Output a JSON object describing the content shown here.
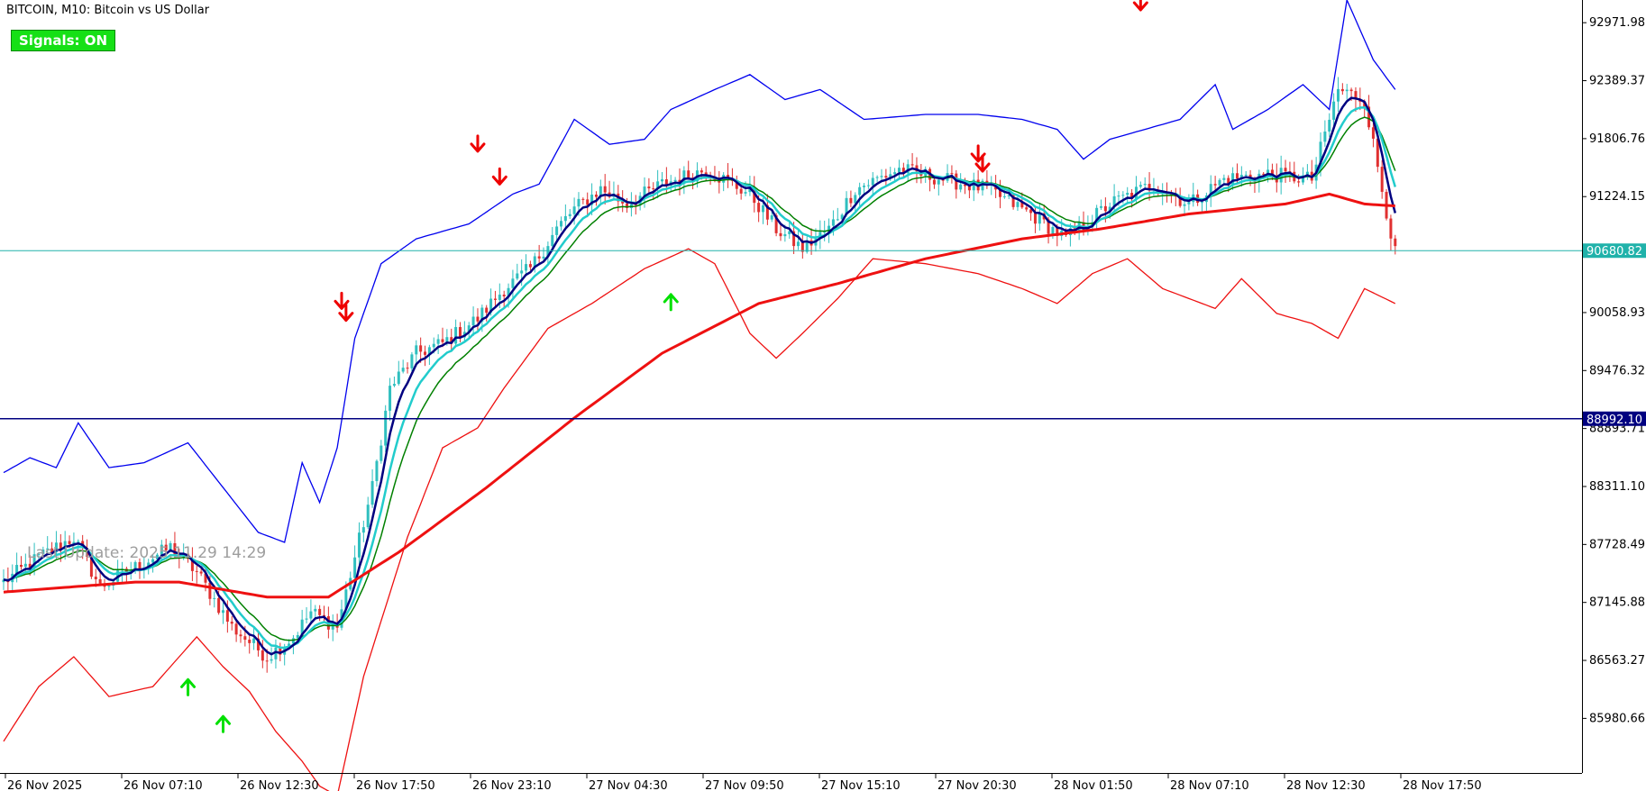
{
  "header": {
    "title": "BITCOIN, M10:  Bitcoin vs US Dollar",
    "signals_label": "Signals: ON",
    "watermark": "Last Update: 2025.11.29 14:29"
  },
  "colors": {
    "bull_candle": "#2fbfbf",
    "bear_candle": "#e03030",
    "ma_fast": "#000080",
    "ma_mid": "#22cccc",
    "ma_slow": "#008000",
    "ma_long": "#ee1111",
    "band_upper": "#0000ee",
    "band_lower": "#ee1111",
    "price_line": "#20b2aa",
    "level_line": "#000080",
    "buy_arrow": "#00e000",
    "sell_arrow": "#ee0000"
  },
  "chart_data": {
    "type": "candlestick",
    "symbol": "BITCOIN",
    "timeframe": "M10",
    "ylim": [
      85450,
      93200
    ],
    "y_ticks": [
      "92971.98",
      "92389.37",
      "91806.76",
      "91224.15",
      "90058.93",
      "89476.32",
      "88893.71",
      "88311.10",
      "87728.49",
      "87145.88",
      "86563.27",
      "85980.66"
    ],
    "x_ticks": [
      "26 Nov 2025",
      "26 Nov 07:10",
      "26 Nov 12:30",
      "26 Nov 17:50",
      "26 Nov 23:10",
      "27 Nov 04:30",
      "27 Nov 09:50",
      "27 Nov 15:10",
      "27 Nov 20:30",
      "28 Nov 01:50",
      "28 Nov 07:10",
      "28 Nov 12:30",
      "28 Nov 17:50"
    ],
    "bars_total": 318,
    "anchors": [
      [
        0,
        87350
      ],
      [
        8,
        87600
      ],
      [
        16,
        87800
      ],
      [
        22,
        87300
      ],
      [
        30,
        87500
      ],
      [
        38,
        87700
      ],
      [
        44,
        87450
      ],
      [
        52,
        86900
      ],
      [
        60,
        86600
      ],
      [
        66,
        86800
      ],
      [
        70,
        87050
      ],
      [
        76,
        86900
      ],
      [
        84,
        88300
      ],
      [
        88,
        89300
      ],
      [
        94,
        89650
      ],
      [
        100,
        89750
      ],
      [
        108,
        90000
      ],
      [
        114,
        90300
      ],
      [
        120,
        90500
      ],
      [
        126,
        90900
      ],
      [
        130,
        91100
      ],
      [
        136,
        91300
      ],
      [
        142,
        91150
      ],
      [
        150,
        91350
      ],
      [
        160,
        91500
      ],
      [
        170,
        91250
      ],
      [
        176,
        90900
      ],
      [
        182,
        90700
      ],
      [
        188,
        90900
      ],
      [
        194,
        91300
      ],
      [
        204,
        91500
      ],
      [
        214,
        91400
      ],
      [
        224,
        91300
      ],
      [
        234,
        91050
      ],
      [
        242,
        90800
      ],
      [
        252,
        91150
      ],
      [
        262,
        91350
      ],
      [
        270,
        91150
      ],
      [
        278,
        91400
      ],
      [
        288,
        91450
      ],
      [
        298,
        91400
      ],
      [
        304,
        92300
      ],
      [
        310,
        92200
      ],
      [
        314,
        91300
      ],
      [
        317,
        90650
      ]
    ],
    "current_price": "90680.82",
    "level_price": "88992.10",
    "ma_long_pts": [
      [
        0,
        87250
      ],
      [
        30,
        87350
      ],
      [
        40,
        87350
      ],
      [
        60,
        87200
      ],
      [
        74,
        87200
      ],
      [
        90,
        87650
      ],
      [
        110,
        88300
      ],
      [
        130,
        89000
      ],
      [
        150,
        89650
      ],
      [
        172,
        90150
      ],
      [
        190,
        90350
      ],
      [
        210,
        90600
      ],
      [
        232,
        90800
      ],
      [
        250,
        90900
      ],
      [
        270,
        91050
      ],
      [
        292,
        91150
      ],
      [
        302,
        91250
      ],
      [
        310,
        91150
      ],
      [
        317,
        91130
      ]
    ],
    "upper_band_pts": [
      [
        0,
        88450
      ],
      [
        6,
        88600
      ],
      [
        12,
        88500
      ],
      [
        17,
        88950
      ],
      [
        24,
        88500
      ],
      [
        32,
        88550
      ],
      [
        42,
        88750
      ],
      [
        50,
        88300
      ],
      [
        58,
        87850
      ],
      [
        64,
        87750
      ],
      [
        68,
        88550
      ],
      [
        72,
        88150
      ],
      [
        76,
        88700
      ],
      [
        80,
        89800
      ],
      [
        86,
        90550
      ],
      [
        94,
        90800
      ],
      [
        106,
        90950
      ],
      [
        116,
        91250
      ],
      [
        122,
        91350
      ],
      [
        130,
        92000
      ],
      [
        138,
        91750
      ],
      [
        146,
        91800
      ],
      [
        152,
        92100
      ],
      [
        162,
        92300
      ],
      [
        170,
        92450
      ],
      [
        178,
        92200
      ],
      [
        186,
        92300
      ],
      [
        196,
        92000
      ],
      [
        210,
        92050
      ],
      [
        222,
        92050
      ],
      [
        232,
        92000
      ],
      [
        240,
        91900
      ],
      [
        246,
        91600
      ],
      [
        252,
        91800
      ],
      [
        260,
        91900
      ],
      [
        268,
        92000
      ],
      [
        276,
        92350
      ],
      [
        280,
        91900
      ],
      [
        288,
        92100
      ],
      [
        296,
        92350
      ],
      [
        302,
        92100
      ],
      [
        306,
        93200
      ],
      [
        312,
        92600
      ],
      [
        317,
        92300
      ]
    ],
    "lower_band_pts": [
      [
        0,
        85750
      ],
      [
        8,
        86300
      ],
      [
        16,
        86600
      ],
      [
        24,
        86200
      ],
      [
        34,
        86300
      ],
      [
        44,
        86800
      ],
      [
        50,
        86500
      ],
      [
        56,
        86250
      ],
      [
        62,
        85850
      ],
      [
        68,
        85550
      ],
      [
        72,
        85300
      ],
      [
        76,
        85200
      ],
      [
        82,
        86400
      ],
      [
        92,
        87800
      ],
      [
        100,
        88700
      ],
      [
        108,
        88900
      ],
      [
        114,
        89300
      ],
      [
        124,
        89900
      ],
      [
        134,
        90150
      ],
      [
        146,
        90500
      ],
      [
        156,
        90700
      ],
      [
        162,
        90550
      ],
      [
        170,
        89850
      ],
      [
        176,
        89600
      ],
      [
        182,
        89850
      ],
      [
        190,
        90200
      ],
      [
        198,
        90600
      ],
      [
        210,
        90550
      ],
      [
        222,
        90450
      ],
      [
        232,
        90300
      ],
      [
        240,
        90150
      ],
      [
        248,
        90450
      ],
      [
        256,
        90600
      ],
      [
        264,
        90300
      ],
      [
        270,
        90200
      ],
      [
        276,
        90100
      ],
      [
        282,
        90400
      ],
      [
        290,
        90050
      ],
      [
        298,
        89950
      ],
      [
        304,
        89800
      ],
      [
        310,
        90300
      ],
      [
        317,
        90150
      ]
    ],
    "sell_signals": [
      [
        77,
        90100
      ],
      [
        78,
        89980
      ],
      [
        108,
        91680
      ],
      [
        113,
        91350
      ],
      [
        222,
        91580
      ],
      [
        223,
        91480
      ],
      [
        259,
        93100
      ]
    ],
    "buy_signals": [
      [
        42,
        86370
      ],
      [
        50,
        86000
      ],
      [
        152,
        90240
      ]
    ]
  }
}
